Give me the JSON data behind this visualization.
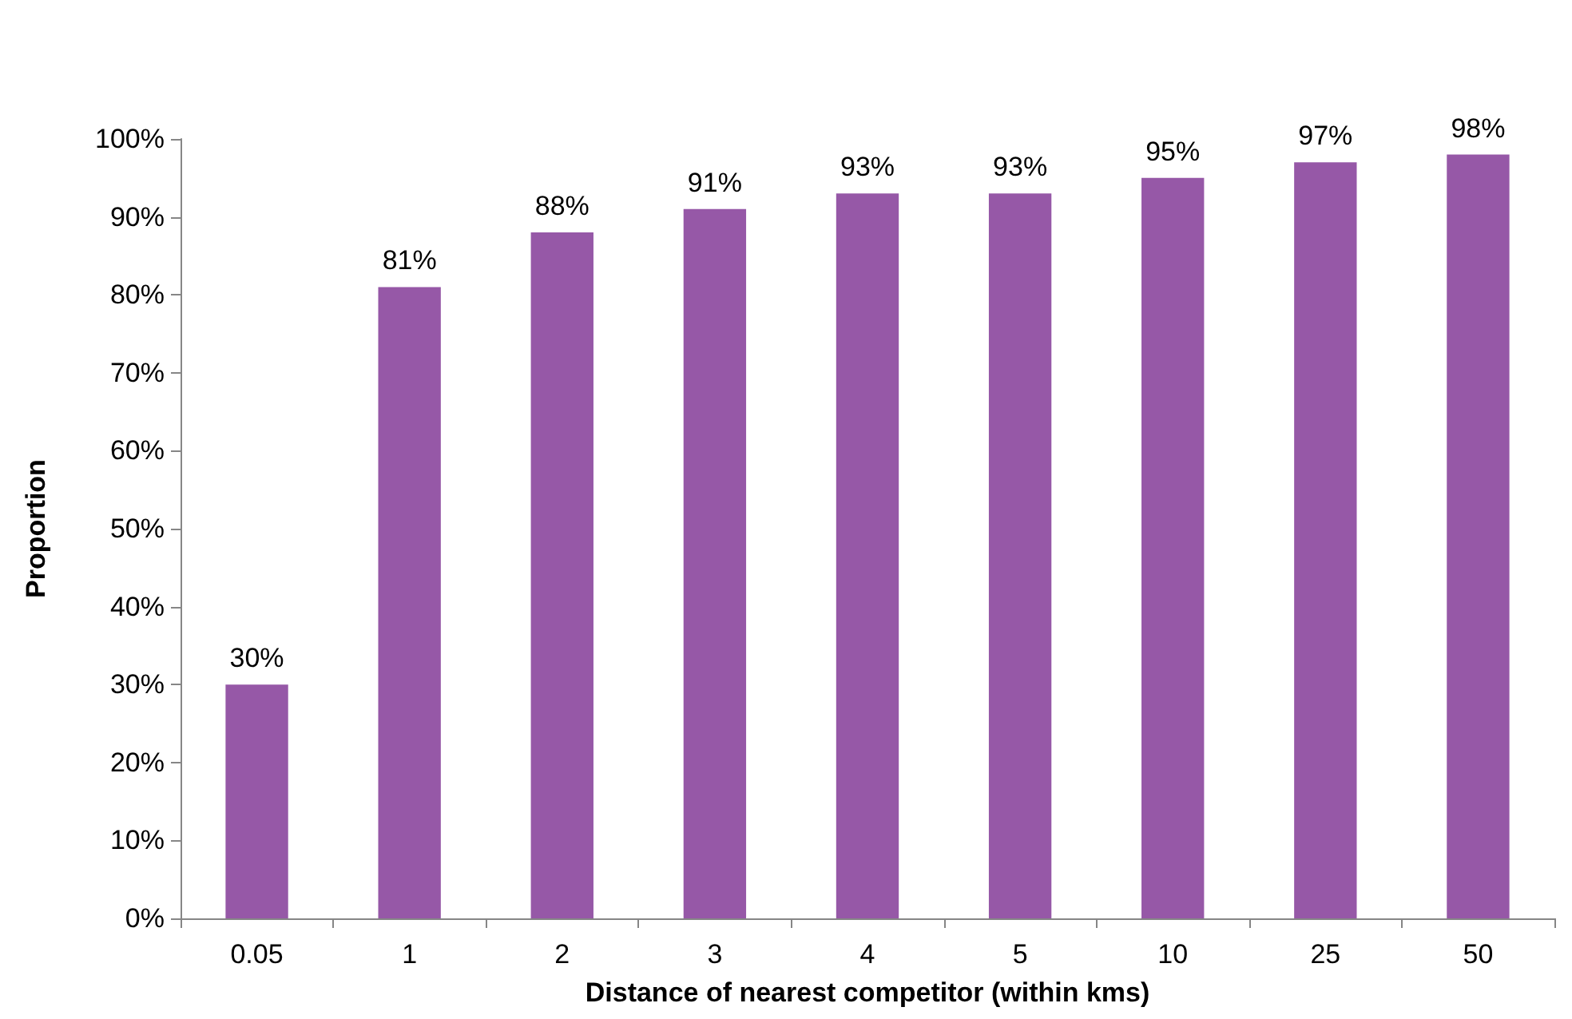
{
  "chart_data": {
    "type": "bar",
    "xlabel": "Distance of nearest competitor (within kms)",
    "ylabel": "Proportion",
    "categories": [
      "0.05",
      "1",
      "2",
      "3",
      "4",
      "5",
      "10",
      "25",
      "50"
    ],
    "values": [
      30,
      81,
      88,
      91,
      93,
      93,
      95,
      97,
      98
    ],
    "value_labels": [
      "30%",
      "81%",
      "88%",
      "91%",
      "93%",
      "93%",
      "95%",
      "97%",
      "98%"
    ],
    "color": "#9658a7",
    "ylim": [
      0,
      100
    ],
    "yticks": [
      {
        "value": 0,
        "label": "0%"
      },
      {
        "value": 10,
        "label": "10%"
      },
      {
        "value": 20,
        "label": "20%"
      },
      {
        "value": 30,
        "label": "30%"
      },
      {
        "value": 40,
        "label": "40%"
      },
      {
        "value": 50,
        "label": "50%"
      },
      {
        "value": 60,
        "label": "60%"
      },
      {
        "value": 70,
        "label": "70%"
      },
      {
        "value": 80,
        "label": "80%"
      },
      {
        "value": 90,
        "label": "90%"
      },
      {
        "value": 100,
        "label": "100%"
      }
    ],
    "grid": false
  }
}
